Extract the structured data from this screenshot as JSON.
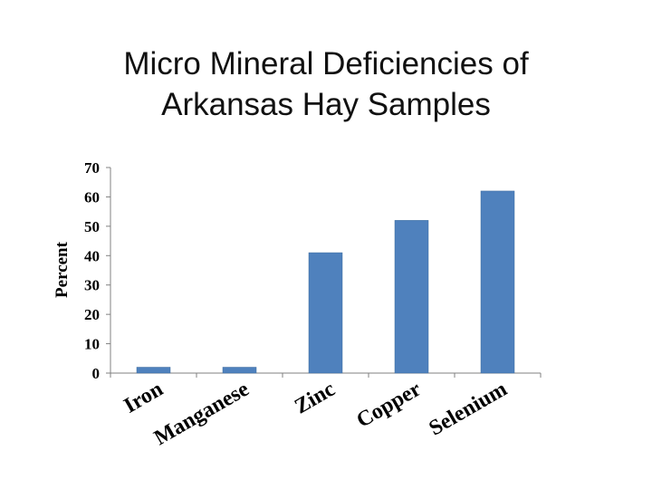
{
  "slide": {
    "title_line1": "Micro Mineral Deficiencies of",
    "title_line2": "Arkansas Hay Samples"
  },
  "chart_data": {
    "type": "bar",
    "title": "Micro Mineral Deficiencies of Arkansas Hay Samples",
    "xlabel": "",
    "ylabel": "Percent",
    "categories": [
      "Iron",
      "Manganese",
      "Zinc",
      "Copper",
      "Selenium"
    ],
    "values": [
      2,
      2,
      41,
      52,
      62
    ],
    "ylim": [
      0,
      70
    ],
    "yticks": [
      0,
      10,
      20,
      30,
      40,
      50,
      60,
      70
    ],
    "grid": false,
    "legend": "none",
    "bar_color": "#4f81bd"
  }
}
